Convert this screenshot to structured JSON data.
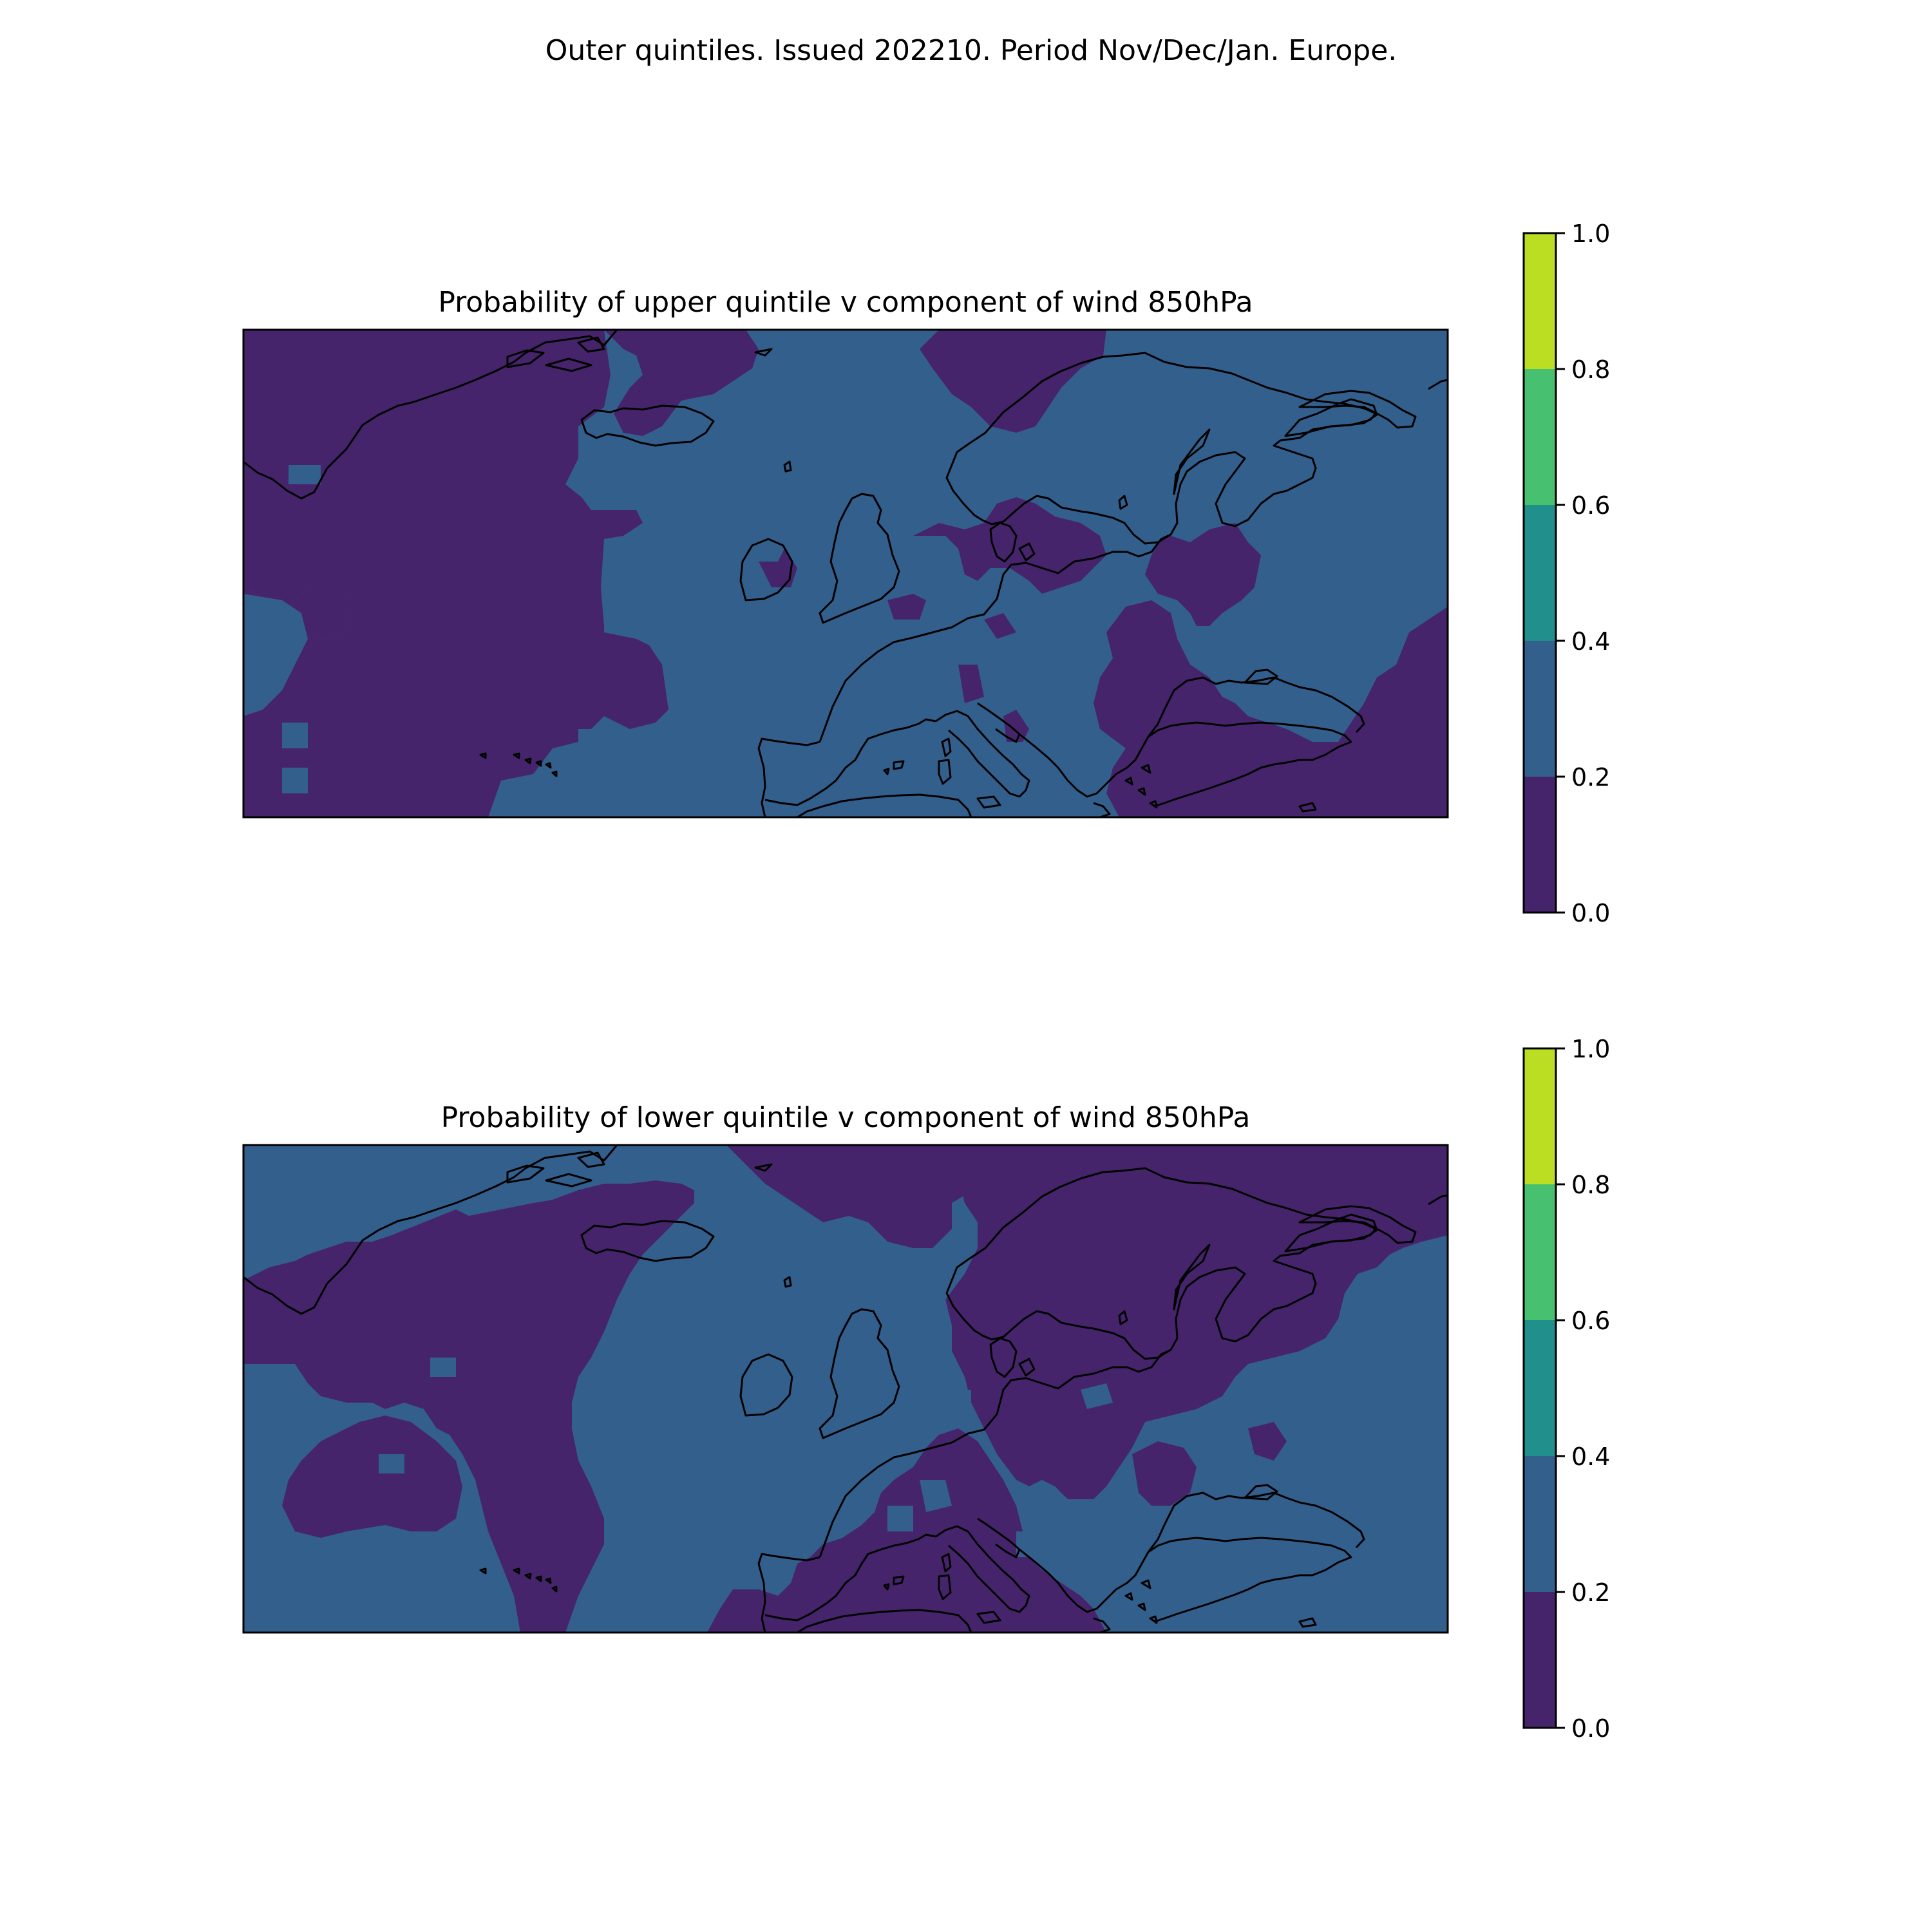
{
  "figure": {
    "suptitle": "Outer quintiles. Issued 202210. Period Nov/Dec/Jan. Europe."
  },
  "colorbar": {
    "ticks": [
      "0.0",
      "0.2",
      "0.4",
      "0.6",
      "0.8",
      "1.0"
    ],
    "levels": [
      0.0,
      0.2,
      0.4,
      0.6,
      0.8,
      1.0
    ],
    "colors": [
      "#46246b",
      "#335f8d",
      "#218f8b",
      "#47c06f",
      "#bcde22"
    ]
  },
  "land_outline_color": "#000000",
  "chart_data": [
    {
      "type": "heatmap",
      "title": "Probability of upper quintile v component of wind 850hPa",
      "colorbar_range": [
        0.0,
        1.0
      ],
      "categories_present": [
        "0.0–0.2",
        "0.2–0.4"
      ],
      "dominant_band": "0.2–0.4 over central Europe, Scandinavia and Russia; 0.0–0.2 over the western Atlantic, Greenland and the eastern Mediterranean/Black Sea"
    },
    {
      "type": "heatmap",
      "title": "Probability of lower quintile v component of wind 850hPa",
      "colorbar_range": [
        0.0,
        1.0
      ],
      "categories_present": [
        "0.0–0.2",
        "0.2–0.4"
      ],
      "dominant_band": "0.0–0.2 over Scandinavia, the central Atlantic and the Mediterranean; 0.2–0.4 over the western Atlantic, the British Isles and eastern Europe"
    }
  ]
}
